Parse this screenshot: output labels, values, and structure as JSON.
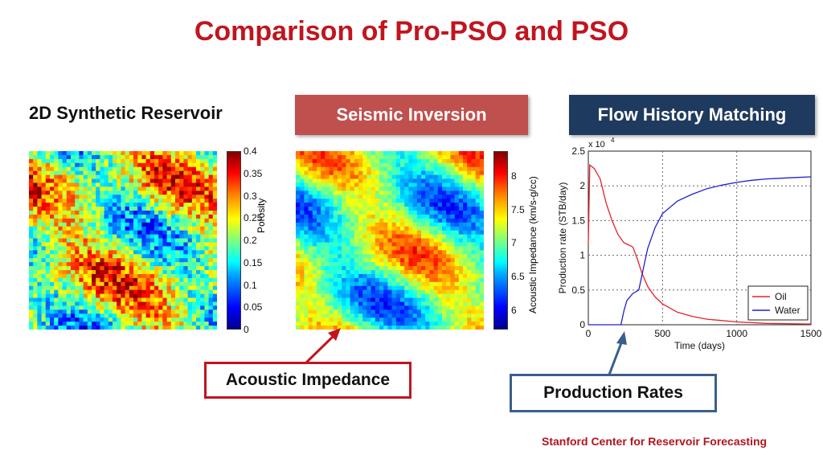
{
  "title": "Comparison of Pro-PSO and PSO",
  "left_heading": "2D Synthetic Reservoir",
  "seismic_button": "Seismic Inversion",
  "flow_button": "Flow History Matching",
  "porosity_colorbar": {
    "label": "Porosity",
    "ticks": [
      "0.4",
      "0.35",
      "0.3",
      "0.25",
      "0.2",
      "0.15",
      "0.1",
      "0.05",
      "0"
    ]
  },
  "impedance_colorbar": {
    "label": "Acoustic Impedance (km/s-g/cc)",
    "ticks": [
      "8",
      "7.5",
      "7",
      "6.5",
      "6"
    ]
  },
  "callout_acoustic": "Acoustic Impedance",
  "callout_production": "Production Rates",
  "footer": "Stanford Center for Reservoir Forecasting",
  "colors": {
    "title": "#c0151f",
    "seismic": "#c0504d",
    "flow": "#1f3a5f",
    "oil": "#e8202a",
    "water": "#2020d0"
  },
  "chart_data": {
    "type": "line",
    "xlabel": "Time (days)",
    "ylabel": "Production rate (STB/day)",
    "multiplier_label": "x 10",
    "multiplier_exp": "4",
    "xlim": [
      0,
      1500
    ],
    "ylim": [
      0,
      2.5
    ],
    "x_ticks": [
      "0",
      "500",
      "1000",
      "1500"
    ],
    "y_ticks": [
      "0",
      "0.5",
      "1",
      "1.5",
      "2",
      "2.5"
    ],
    "grid": true,
    "legend_position": "bottom-right",
    "series": [
      {
        "name": "Oil",
        "color": "#e8202a",
        "x": [
          0,
          10,
          40,
          80,
          120,
          160,
          200,
          240,
          270,
          300,
          330,
          360,
          400,
          450,
          500,
          600,
          700,
          800,
          1000,
          1200,
          1500
        ],
        "y": [
          1.15,
          2.3,
          2.25,
          2.1,
          1.75,
          1.5,
          1.3,
          1.18,
          1.15,
          1.12,
          0.95,
          0.75,
          0.55,
          0.4,
          0.3,
          0.18,
          0.12,
          0.08,
          0.04,
          0.02,
          0.01
        ]
      },
      {
        "name": "Water",
        "color": "#2020d0",
        "x": [
          0,
          220,
          240,
          260,
          300,
          340,
          370,
          400,
          450,
          500,
          600,
          700,
          800,
          900,
          1000,
          1100,
          1200,
          1300,
          1400,
          1500
        ],
        "y": [
          0,
          0,
          0.2,
          0.35,
          0.45,
          0.5,
          0.8,
          1.1,
          1.4,
          1.6,
          1.78,
          1.88,
          1.96,
          2.01,
          2.05,
          2.08,
          2.1,
          2.11,
          2.12,
          2.13
        ]
      }
    ]
  }
}
